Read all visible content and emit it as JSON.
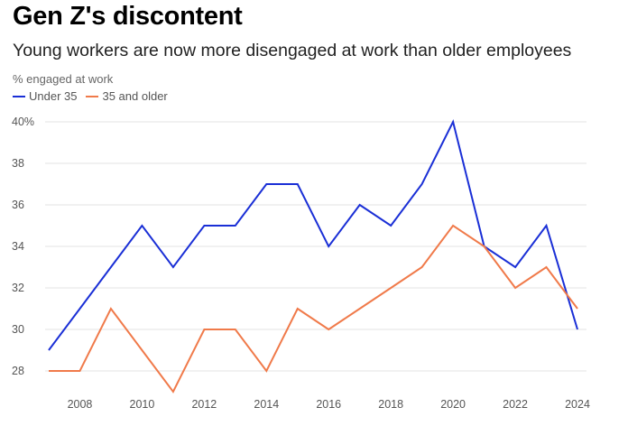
{
  "chart_data": {
    "type": "line",
    "title": "Gen Z's discontent",
    "subtitle": "Young workers are now more disengaged at work than older employees",
    "ylabel": "% engaged at work",
    "xlabel": "",
    "x": [
      2007,
      2008,
      2009,
      2010,
      2011,
      2012,
      2013,
      2014,
      2015,
      2016,
      2017,
      2018,
      2019,
      2020,
      2021,
      2022,
      2023,
      2024
    ],
    "series": [
      {
        "name": "Under 35",
        "color": "#1a2fd6",
        "values": [
          29,
          31,
          33,
          35,
          33,
          35,
          35,
          37,
          37,
          34,
          36,
          35,
          37,
          40,
          34,
          33,
          35,
          30
        ]
      },
      {
        "name": "35 and older",
        "color": "#f07a4a",
        "values": [
          28,
          28,
          31,
          29,
          27,
          30,
          30,
          28,
          31,
          30,
          31,
          32,
          33,
          35,
          34,
          32,
          33,
          31
        ]
      }
    ],
    "ylim": [
      27,
      40
    ],
    "yticks": [
      "28",
      "30",
      "32",
      "34",
      "36",
      "38",
      "40%"
    ],
    "ytick_values": [
      28,
      30,
      32,
      34,
      36,
      38,
      40
    ],
    "xticks": [
      "2008",
      "2010",
      "2012",
      "2014",
      "2016",
      "2018",
      "2020",
      "2022",
      "2024"
    ],
    "xtick_values": [
      2008,
      2010,
      2012,
      2014,
      2016,
      2018,
      2020,
      2022,
      2024
    ],
    "grid": true,
    "legend_position": "top-left"
  }
}
